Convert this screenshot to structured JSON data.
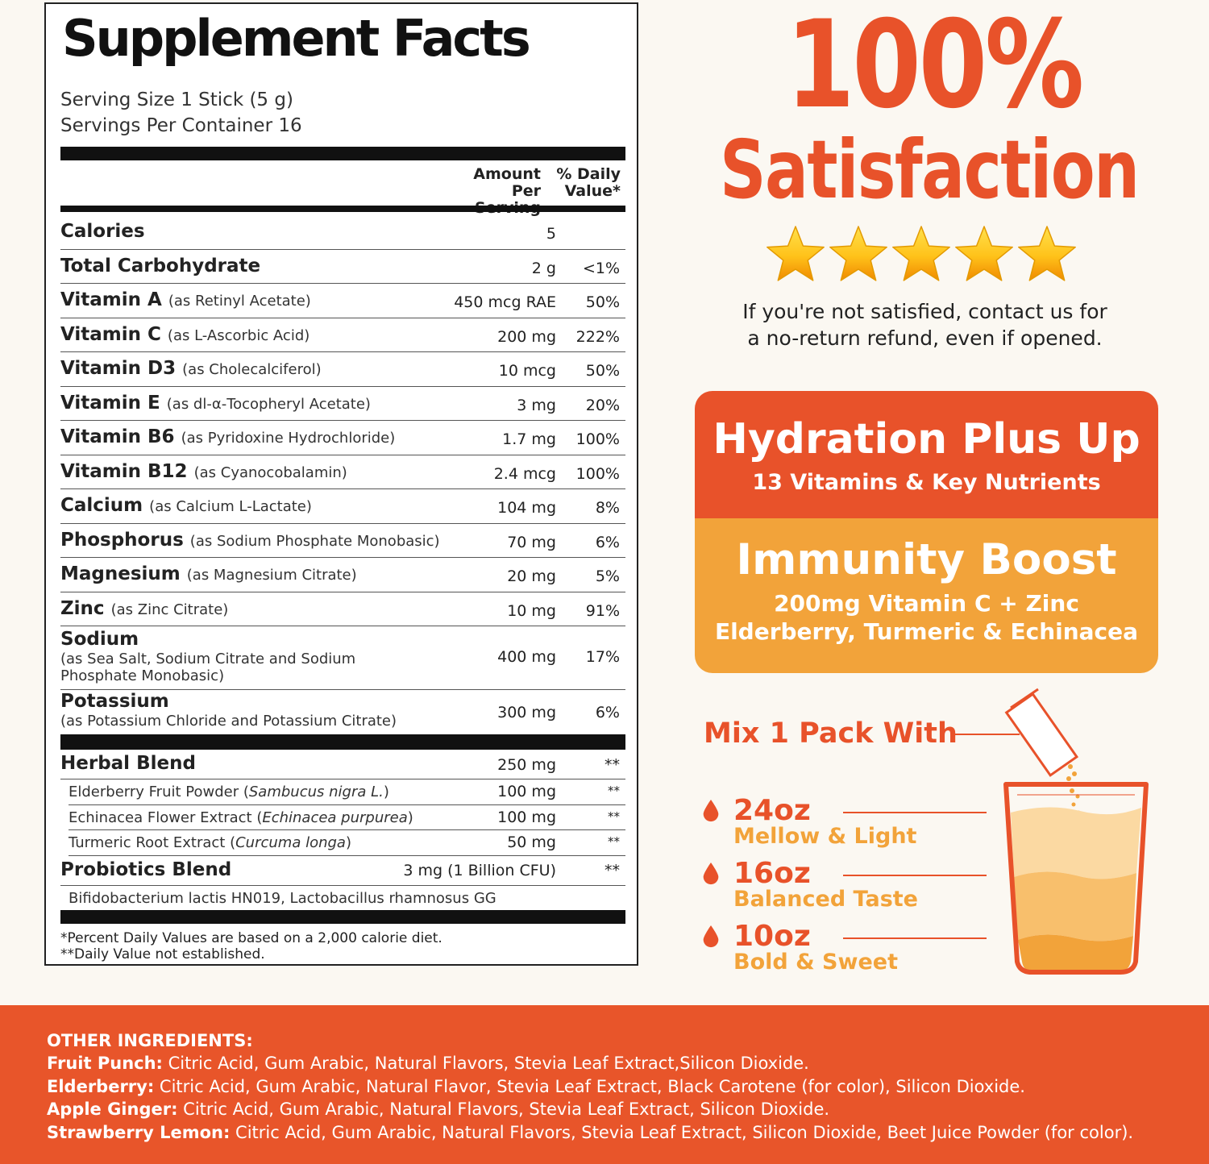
{
  "facts": {
    "title": "Supplement Facts",
    "serving_size": "Serving Size 1 Stick (5 g)",
    "servings_per_container": "Servings Per Container 16",
    "col_amount_1": "Amount",
    "col_amount_2": "Per Serving",
    "col_dv_1": "% Daily",
    "col_dv_2": "Value*",
    "rows": [
      {
        "name": "Calories",
        "source": "",
        "amount": "5",
        "dv": ""
      },
      {
        "name": "Total Carbohydrate",
        "source": "",
        "amount": "2 g",
        "dv": "<1%"
      },
      {
        "name": "Vitamin A",
        "source": "(as Retinyl Acetate)",
        "amount": "450 mcg RAE",
        "dv": "50%"
      },
      {
        "name": "Vitamin C",
        "source": "(as L-Ascorbic Acid)",
        "amount": "200 mg",
        "dv": "222%"
      },
      {
        "name": "Vitamin D3",
        "source": "(as Cholecalciferol)",
        "amount": "10 mcg",
        "dv": "50%"
      },
      {
        "name": "Vitamin E",
        "source": "(as dl-α-Tocopheryl Acetate)",
        "amount": "3 mg",
        "dv": "20%"
      },
      {
        "name": "Vitamin B6",
        "source": "(as Pyridoxine Hydrochloride)",
        "amount": "1.7 mg",
        "dv": "100%"
      },
      {
        "name": "Vitamin B12",
        "source": "(as Cyanocobalamin)",
        "amount": "2.4 mcg",
        "dv": "100%"
      },
      {
        "name": "Calcium",
        "source": "(as Calcium L-Lactate)",
        "amount": "104 mg",
        "dv": "8%"
      },
      {
        "name": "Phosphorus",
        "source": "(as Sodium Phosphate Monobasic)",
        "amount": "70 mg",
        "dv": "6%"
      },
      {
        "name": "Magnesium",
        "source": "(as Magnesium Citrate)",
        "amount": "20 mg",
        "dv": "5%"
      },
      {
        "name": "Zinc",
        "source": "(as Zinc Citrate)",
        "amount": "10 mg",
        "dv": "91%"
      }
    ],
    "sodium": {
      "name": "Sodium",
      "sub_1": "(as Sea Salt, Sodium Citrate and Sodium",
      "sub_2": "Phosphate Monobasic)",
      "amount": "400 mg",
      "dv": "17%"
    },
    "potassium": {
      "name": "Potassium",
      "sub_1": "(as Potassium Chloride and Potassium Citrate)",
      "amount": "300 mg",
      "dv": "6%"
    },
    "herbal": {
      "name": "Herbal Blend",
      "amount": "250 mg",
      "dv": "**"
    },
    "herbs": [
      {
        "name": "Elderberry Fruit Powder",
        "latin": "Sambucus nigra L.",
        "amount": "100 mg",
        "dv": "**"
      },
      {
        "name": "Echinacea Flower Extract",
        "latin": "Echinacea purpurea",
        "amount": "100 mg",
        "dv": "**"
      },
      {
        "name": "Turmeric Root Extract",
        "latin": "Curcuma longa",
        "amount": "50 mg",
        "dv": "**"
      }
    ],
    "probiotics": {
      "name": "Probiotics Blend",
      "amount": "3 mg (1 Billion CFU)",
      "dv": "**",
      "strains": "Bifidobacterium lactis HN019, Lactobacillus rhamnosus GG"
    },
    "footnote_1": "*Percent Daily Values are based on a 2,000 calorie diet.",
    "footnote_2": "**Daily Value not established."
  },
  "promo": {
    "headline_1": "100%",
    "headline_2": "Satisfaction",
    "rating_stars": 5,
    "refund_1": "If you're not satisfied, contact us for",
    "refund_2": "a no-return refund, even if opened.",
    "box_title_1": "Hydration Plus Up",
    "box_sub_1": "13 Vitamins & Key Nutrients",
    "box_title_2": "Immunity Boost",
    "box_sub_2a": "200mg Vitamin C + Zinc",
    "box_sub_2b": "Elderberry, Turmeric & Echinacea",
    "colors": {
      "orange": "#e8522a",
      "amber": "#f2a33a"
    }
  },
  "mix": {
    "title": "Mix 1 Pack With",
    "options": [
      {
        "size": "24oz",
        "desc": "Mellow & Light"
      },
      {
        "size": "16oz",
        "desc": "Balanced Taste"
      },
      {
        "size": "10oz",
        "desc": "Bold & Sweet"
      }
    ],
    "icons": [
      "drop-icon",
      "stick-pack-icon",
      "glass-icon"
    ]
  },
  "ingredients": {
    "heading": "OTHER INGREDIENTS:",
    "items": [
      {
        "flavor": "Fruit Punch:",
        "list": " Citric Acid, Gum Arabic, Natural Flavors, Stevia Leaf Extract,Silicon Dioxide."
      },
      {
        "flavor": "Elderberry:",
        "list": " Citric Acid, Gum Arabic, Natural Flavor, Stevia Leaf Extract, Black Carotene (for color), Silicon Dioxide."
      },
      {
        "flavor": "Apple Ginger:",
        "list": " Citric Acid, Gum Arabic, Natural Flavors, Stevia Leaf Extract, Silicon Dioxide."
      },
      {
        "flavor": "Strawberry Lemon:",
        "list": " Citric Acid, Gum Arabic, Natural Flavors, Stevia Leaf Extract, Silicon Dioxide, Beet Juice Powder (for color)."
      }
    ]
  }
}
